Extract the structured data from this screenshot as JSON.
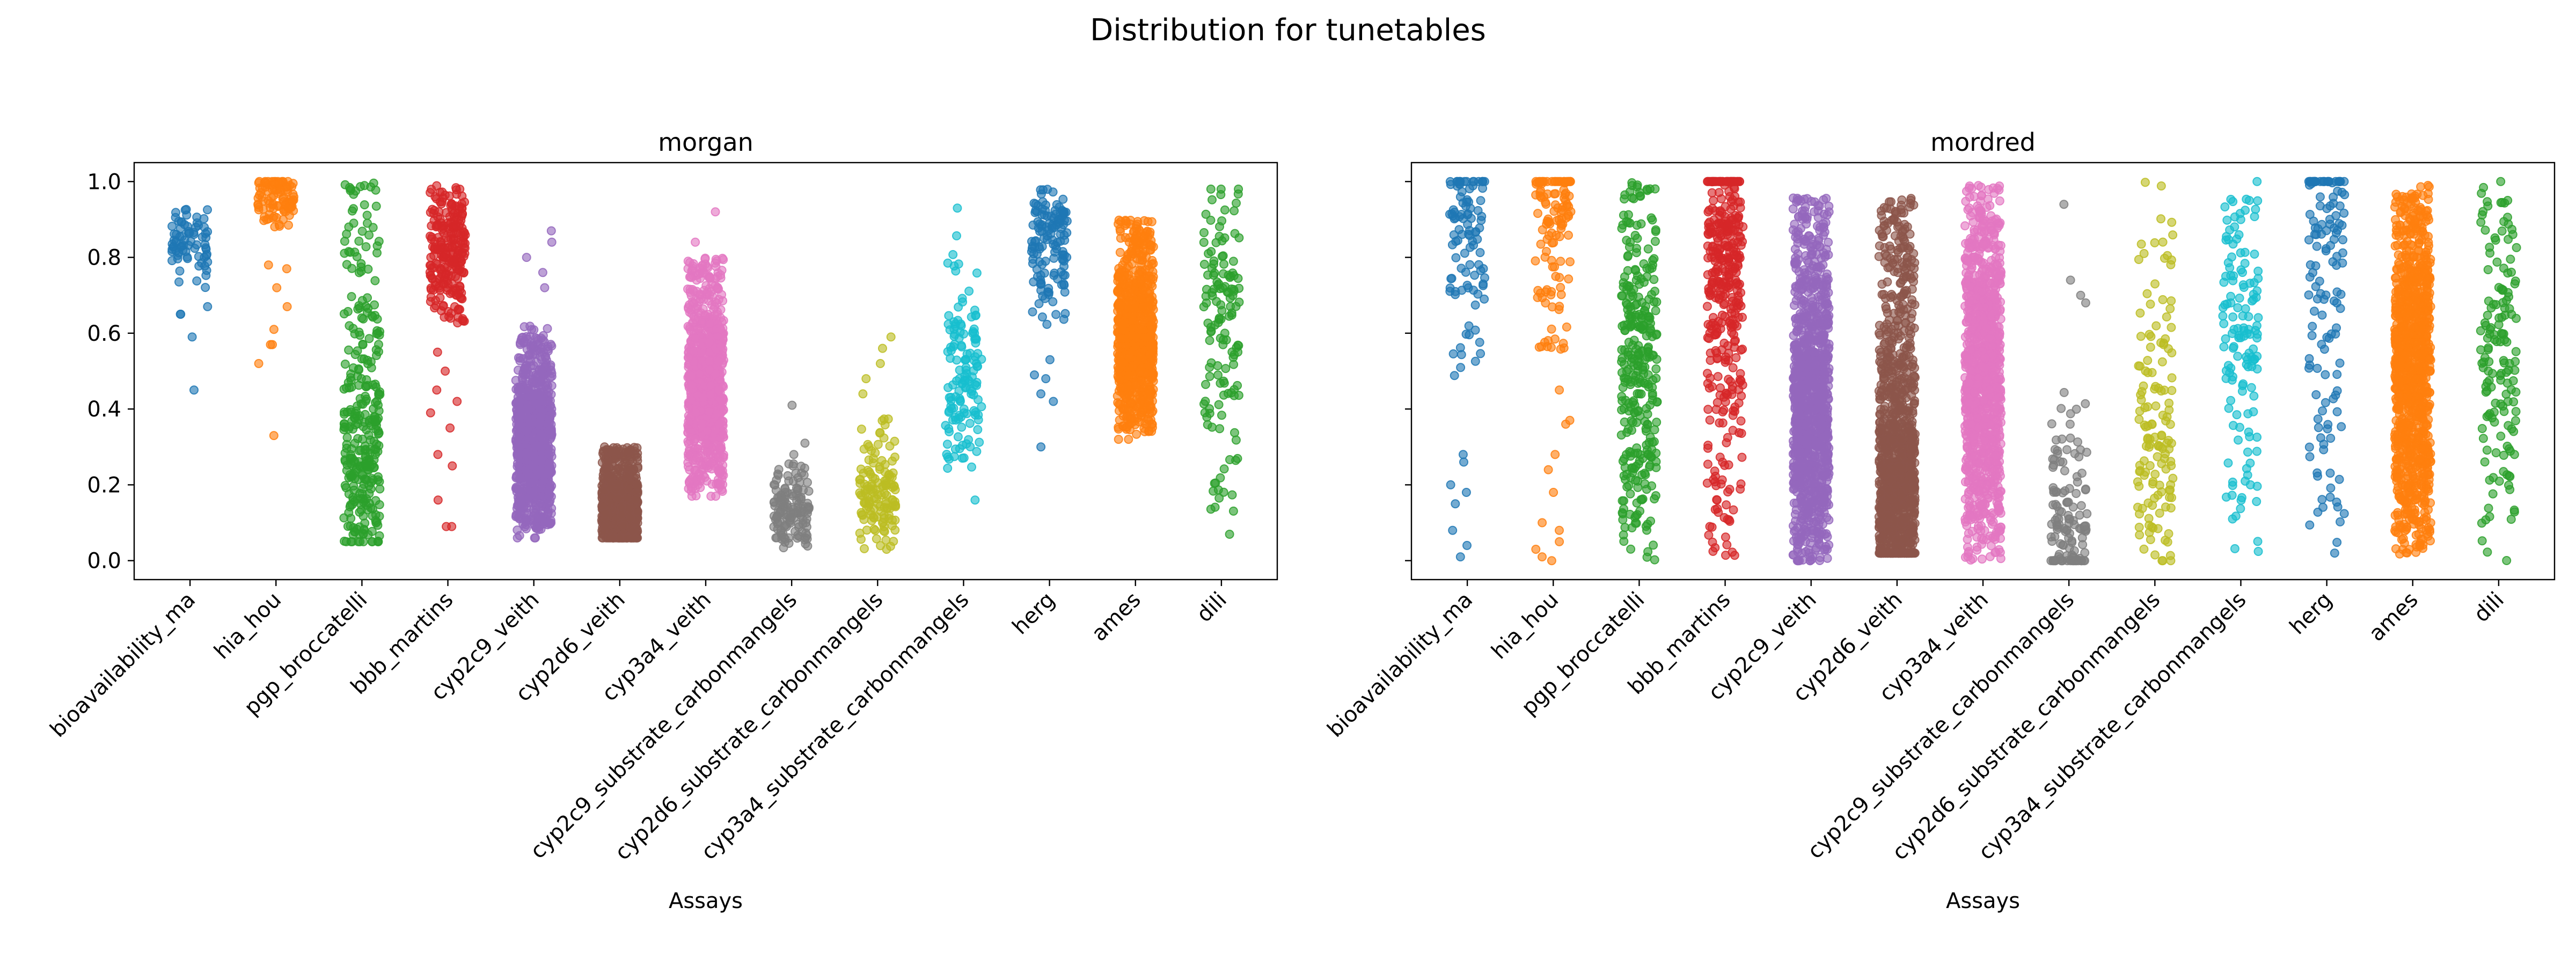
{
  "figure": {
    "suptitle": "Distribution for tunetables"
  },
  "chart_data": [
    {
      "type": "strip",
      "title": "morgan",
      "xlabel": "Assays",
      "ylabel": "",
      "ylim": [
        -0.05,
        1.05
      ],
      "yticks": [
        "0.0",
        "0.2",
        "0.4",
        "0.6",
        "0.8",
        "1.0"
      ],
      "ytick_values": [
        0.0,
        0.2,
        0.4,
        0.6,
        0.8,
        1.0
      ],
      "show_ytick_labels": true,
      "grid": false,
      "series": [
        {
          "name": "bioavailability_ma",
          "color": "#1f77b4",
          "n": 80,
          "min": 0.45,
          "max": 0.95,
          "median": 0.85,
          "lo": 0.72,
          "hi": 0.94,
          "outliers": [
            0.45,
            0.59,
            0.65,
            0.65,
            0.67
          ]
        },
        {
          "name": "hia_hou",
          "color": "#ff7f0e",
          "n": 110,
          "min": 0.33,
          "max": 1.0,
          "median": 0.97,
          "lo": 0.88,
          "hi": 1.0,
          "outliers": [
            0.33,
            0.52,
            0.57,
            0.57,
            0.61,
            0.67,
            0.72,
            0.77,
            0.78
          ]
        },
        {
          "name": "pgp_broccatelli",
          "color": "#2ca02c",
          "n": 320,
          "min": 0.05,
          "max": 1.0,
          "median": 0.3,
          "lo": 0.05,
          "hi": 1.0,
          "outliers": []
        },
        {
          "name": "bbb_martins",
          "color": "#d62728",
          "n": 260,
          "min": 0.09,
          "max": 0.99,
          "median": 0.82,
          "lo": 0.62,
          "hi": 0.99,
          "outliers": [
            0.09,
            0.09,
            0.16,
            0.25,
            0.28,
            0.35,
            0.39,
            0.42,
            0.45,
            0.5,
            0.55
          ]
        },
        {
          "name": "cyp2c9_veith",
          "color": "#9467bd",
          "n": 900,
          "min": 0.06,
          "max": 0.87,
          "median": 0.3,
          "lo": 0.08,
          "hi": 0.62,
          "outliers": [
            0.72,
            0.76,
            0.8,
            0.84,
            0.87
          ]
        },
        {
          "name": "cyp2d6_veith",
          "color": "#8c564b",
          "n": 900,
          "min": 0.06,
          "max": 0.31,
          "median": 0.12,
          "lo": 0.06,
          "hi": 0.3,
          "outliers": []
        },
        {
          "name": "cyp3a4_veith",
          "color": "#e377c2",
          "n": 900,
          "min": 0.17,
          "max": 0.92,
          "median": 0.45,
          "lo": 0.18,
          "hi": 0.8,
          "outliers": [
            0.84,
            0.92
          ]
        },
        {
          "name": "cyp2c9_substrate_carbonmangels",
          "color": "#7f7f7f",
          "n": 140,
          "min": 0.02,
          "max": 0.41,
          "median": 0.12,
          "lo": 0.03,
          "hi": 0.26,
          "outliers": [
            0.28,
            0.31,
            0.41
          ]
        },
        {
          "name": "cyp2d6_substrate_carbonmangels",
          "color": "#bcbd22",
          "n": 140,
          "min": 0.03,
          "max": 0.59,
          "median": 0.18,
          "lo": 0.04,
          "hi": 0.4,
          "outliers": [
            0.44,
            0.48,
            0.52,
            0.56,
            0.59
          ]
        },
        {
          "name": "cyp3a4_substrate_carbonmangels",
          "color": "#17becf",
          "n": 140,
          "min": 0.16,
          "max": 0.93,
          "median": 0.5,
          "lo": 0.24,
          "hi": 0.88,
          "outliers": [
            0.16,
            0.93
          ]
        },
        {
          "name": "herg",
          "color": "#1f77b4",
          "n": 140,
          "min": 0.3,
          "max": 0.98,
          "median": 0.85,
          "lo": 0.62,
          "hi": 0.98,
          "outliers": [
            0.3,
            0.42,
            0.44,
            0.48,
            0.49,
            0.53
          ]
        },
        {
          "name": "ames",
          "color": "#ff7f0e",
          "n": 900,
          "min": 0.32,
          "max": 0.91,
          "median": 0.58,
          "lo": 0.34,
          "hi": 0.9,
          "outliers": []
        },
        {
          "name": "dili",
          "color": "#2ca02c",
          "n": 140,
          "min": 0.03,
          "max": 0.98,
          "median": 0.65,
          "lo": 0.05,
          "hi": 0.98,
          "outliers": []
        }
      ]
    },
    {
      "type": "strip",
      "title": "mordred",
      "xlabel": "Assays",
      "ylabel": "",
      "ylim": [
        -0.05,
        1.05
      ],
      "yticks": [
        "0.0",
        "0.2",
        "0.4",
        "0.6",
        "0.8",
        "1.0"
      ],
      "ytick_values": [
        0.0,
        0.2,
        0.4,
        0.6,
        0.8,
        1.0
      ],
      "show_ytick_labels": false,
      "grid": false,
      "series": [
        {
          "name": "bioavailability_ma",
          "color": "#1f77b4",
          "n": 110,
          "min": 0.01,
          "max": 1.0,
          "median": 0.92,
          "lo": 0.45,
          "hi": 1.0,
          "outliers": [
            0.01,
            0.04,
            0.08,
            0.15,
            0.18,
            0.2,
            0.26,
            0.28
          ]
        },
        {
          "name": "hia_hou",
          "color": "#ff7f0e",
          "n": 130,
          "min": 0.0,
          "max": 1.0,
          "median": 0.96,
          "lo": 0.55,
          "hi": 1.0,
          "outliers": [
            0.0,
            0.01,
            0.03,
            0.05,
            0.08,
            0.1,
            0.18,
            0.24,
            0.28,
            0.36,
            0.37,
            0.45
          ]
        },
        {
          "name": "pgp_broccatelli",
          "color": "#2ca02c",
          "n": 320,
          "min": 0.0,
          "max": 1.0,
          "median": 0.5,
          "lo": 0.0,
          "hi": 1.0,
          "outliers": []
        },
        {
          "name": "bbb_martins",
          "color": "#d62728",
          "n": 380,
          "min": 0.0,
          "max": 1.0,
          "median": 0.8,
          "lo": 0.0,
          "hi": 1.0,
          "outliers": []
        },
        {
          "name": "cyp2c9_veith",
          "color": "#9467bd",
          "n": 1100,
          "min": 0.0,
          "max": 0.97,
          "median": 0.4,
          "lo": 0.0,
          "hi": 0.96,
          "outliers": []
        },
        {
          "name": "cyp2d6_veith",
          "color": "#8c564b",
          "n": 1100,
          "min": 0.02,
          "max": 0.98,
          "median": 0.15,
          "lo": 0.02,
          "hi": 0.96,
          "outliers": []
        },
        {
          "name": "cyp3a4_veith",
          "color": "#e377c2",
          "n": 1100,
          "min": 0.0,
          "max": 0.99,
          "median": 0.5,
          "lo": 0.0,
          "hi": 0.99,
          "outliers": []
        },
        {
          "name": "cyp2c9_substrate_carbonmangels",
          "color": "#7f7f7f",
          "n": 130,
          "min": 0.0,
          "max": 0.94,
          "median": 0.05,
          "lo": 0.0,
          "hi": 0.45,
          "outliers": [
            0.68,
            0.7,
            0.74,
            0.94
          ]
        },
        {
          "name": "cyp2d6_substrate_carbonmangels",
          "color": "#bcbd22",
          "n": 140,
          "min": 0.0,
          "max": 1.0,
          "median": 0.3,
          "lo": 0.0,
          "hi": 1.0,
          "outliers": []
        },
        {
          "name": "cyp3a4_substrate_carbonmangels",
          "color": "#17becf",
          "n": 140,
          "min": 0.0,
          "max": 1.0,
          "median": 0.6,
          "lo": 0.0,
          "hi": 1.0,
          "outliers": []
        },
        {
          "name": "herg",
          "color": "#1f77b4",
          "n": 140,
          "min": 0.0,
          "max": 1.0,
          "median": 0.9,
          "lo": 0.0,
          "hi": 1.0,
          "outliers": []
        },
        {
          "name": "ames",
          "color": "#ff7f0e",
          "n": 1100,
          "min": 0.01,
          "max": 0.99,
          "median": 0.5,
          "lo": 0.01,
          "hi": 0.99,
          "outliers": []
        },
        {
          "name": "dili",
          "color": "#2ca02c",
          "n": 150,
          "min": 0.0,
          "max": 1.0,
          "median": 0.55,
          "lo": 0.0,
          "hi": 1.0,
          "outliers": []
        }
      ]
    }
  ]
}
